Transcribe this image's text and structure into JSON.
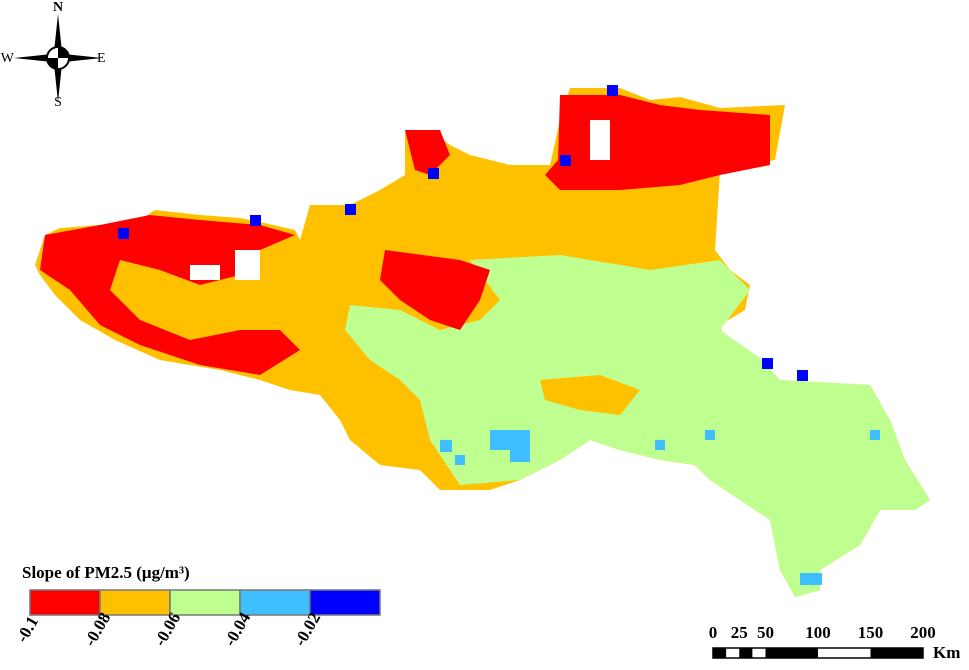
{
  "compass": {
    "north": "N",
    "south": "S",
    "west": "W",
    "east": "E"
  },
  "legend": {
    "title": "Slope of PM2.5 (μg/m³)",
    "items": [
      {
        "label": "-0.1",
        "color": "#ff0000"
      },
      {
        "label": "-0.08",
        "color": "#ffc000"
      },
      {
        "label": "-0.06",
        "color": "#bfff8f"
      },
      {
        "label": "-0.04",
        "color": "#3fbfff"
      },
      {
        "label": "-0.02",
        "color": "#0000ff"
      }
    ]
  },
  "scale_bar": {
    "labels": [
      "0",
      "25",
      "50",
      "100",
      "150",
      "200"
    ],
    "unit": "Km"
  }
}
